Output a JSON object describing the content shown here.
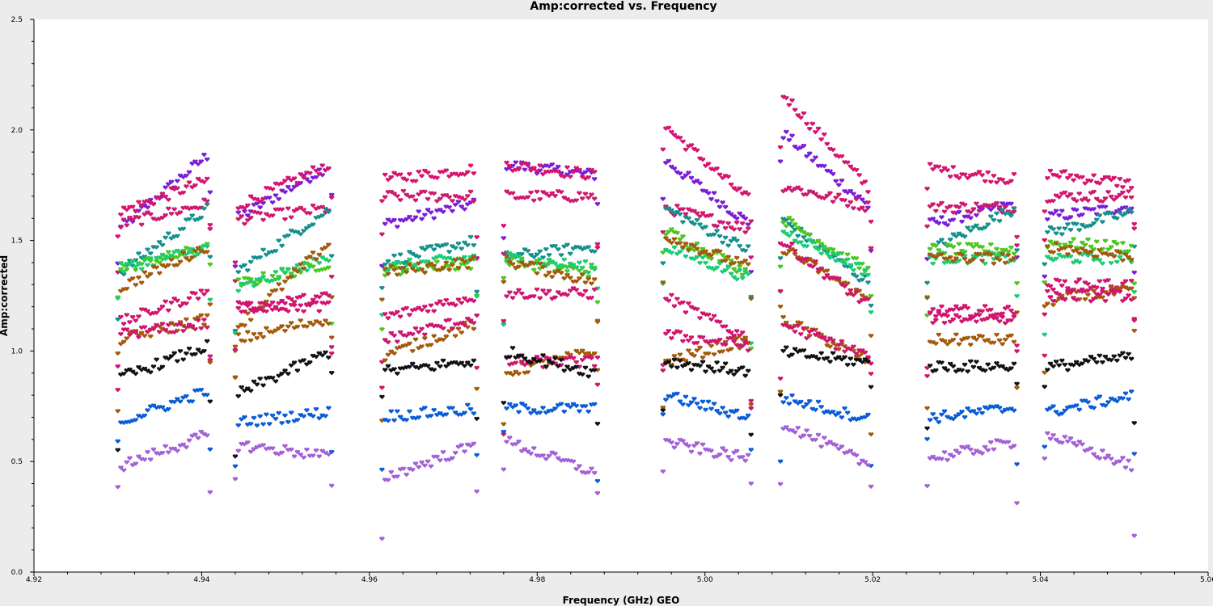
{
  "chart_data": {
    "type": "scatter",
    "title": "Amp:corrected vs. Frequency",
    "xlabel": "Frequency (GHz) GEO",
    "ylabel": "Amp:corrected",
    "xlim": [
      4.92,
      5.06
    ],
    "ylim": [
      0.0,
      2.5
    ],
    "x_ticks": [
      "4.92",
      "4.94",
      "4.96",
      "4.98",
      "5.00",
      "5.02",
      "5.04",
      "5.06"
    ],
    "y_ticks": [
      "0.0",
      "0.5",
      "1.0",
      "1.5",
      "2.0",
      "2.5"
    ],
    "grid": false,
    "marker": "heart",
    "spectral_windows": [
      {
        "x_start": 4.93,
        "x_end": 4.941
      },
      {
        "x_start": 4.944,
        "x_end": 4.9555
      },
      {
        "x_start": 4.9615,
        "x_end": 4.9728
      },
      {
        "x_start": 4.976,
        "x_end": 4.9872
      },
      {
        "x_start": 4.995,
        "x_end": 5.0055
      },
      {
        "x_start": 5.009,
        "x_end": 5.0198
      },
      {
        "x_start": 5.0265,
        "x_end": 5.0372
      },
      {
        "x_start": 5.0405,
        "x_end": 5.0512
      }
    ],
    "series": [
      {
        "color": "#7a1ed6",
        "levels": [
          1.72,
          1.72,
          1.62,
          1.82,
          1.72,
          1.82,
          1.62,
          1.63
        ],
        "slopes": [
          0.35,
          0.25,
          0.1,
          -0.05,
          -0.3,
          -0.35,
          0.1,
          0.05
        ]
      },
      {
        "color": "#d6146e",
        "levels": [
          1.7,
          1.75,
          1.8,
          1.82,
          1.85,
          1.95,
          1.8,
          1.78
        ],
        "slopes": [
          0.15,
          0.2,
          0.05,
          -0.05,
          -0.35,
          -0.45,
          -0.05,
          -0.05
        ]
      },
      {
        "color": "#cc1a6e",
        "levels": [
          1.62,
          1.62,
          1.7,
          1.7,
          1.6,
          1.7,
          1.65,
          1.7
        ],
        "slopes": [
          0.1,
          0.05,
          0.0,
          0.0,
          -0.1,
          -0.1,
          0.0,
          0.0
        ]
      },
      {
        "color": "#15908c",
        "levels": [
          1.5,
          1.5,
          1.45,
          1.45,
          1.55,
          1.45,
          1.55,
          1.58
        ],
        "slopes": [
          0.3,
          0.3,
          0.1,
          0.05,
          -0.2,
          -0.3,
          0.2,
          0.1
        ]
      },
      {
        "color": "#4dc61f",
        "levels": [
          1.42,
          1.35,
          1.38,
          1.38,
          1.45,
          1.48,
          1.46,
          1.48
        ],
        "slopes": [
          0.1,
          0.1,
          0.03,
          -0.05,
          -0.2,
          -0.25,
          0.0,
          -0.02
        ]
      },
      {
        "color": "#1ccc74",
        "levels": [
          1.42,
          1.35,
          1.4,
          1.4,
          1.4,
          1.45,
          1.42,
          1.42
        ],
        "slopes": [
          0.1,
          0.15,
          0.05,
          -0.05,
          -0.15,
          -0.2,
          0.0,
          0.0
        ]
      },
      {
        "color": "#a25a0a",
        "levels": [
          1.38,
          1.3,
          1.38,
          1.36,
          1.45,
          1.35,
          1.42,
          1.45
        ],
        "slopes": [
          0.2,
          0.4,
          0.05,
          -0.1,
          -0.15,
          -0.25,
          0.0,
          -0.05
        ]
      },
      {
        "color": "#d0156f",
        "levels": [
          1.2,
          1.22,
          1.2,
          1.26,
          1.15,
          1.35,
          1.18,
          1.3
        ],
        "slopes": [
          0.15,
          0.05,
          0.1,
          0.0,
          -0.2,
          -0.3,
          0.0,
          0.0
        ]
      },
      {
        "color": "#a25a0a",
        "levels": [
          1.1,
          1.1,
          1.05,
          0.95,
          1.0,
          1.05,
          1.05,
          1.25
        ],
        "slopes": [
          0.1,
          0.1,
          0.15,
          0.1,
          0.1,
          -0.2,
          0.0,
          0.05
        ]
      },
      {
        "color": "#d0156f",
        "levels": [
          1.1,
          1.2,
          1.1,
          0.95,
          1.05,
          1.05,
          1.15,
          1.25
        ],
        "slopes": [
          0.05,
          0.0,
          0.1,
          0.0,
          -0.05,
          -0.15,
          0.0,
          0.0
        ]
      },
      {
        "color": "#111111",
        "levels": [
          0.95,
          0.9,
          0.93,
          0.95,
          0.93,
          0.97,
          0.93,
          0.95
        ],
        "slopes": [
          0.15,
          0.2,
          0.05,
          -0.1,
          -0.05,
          -0.05,
          0.0,
          0.05
        ]
      },
      {
        "color": "#0a5cd6",
        "levels": [
          0.75,
          0.7,
          0.72,
          0.74,
          0.75,
          0.74,
          0.72,
          0.76
        ],
        "slopes": [
          0.15,
          0.05,
          0.03,
          0.0,
          -0.1,
          -0.1,
          0.05,
          0.08
        ]
      },
      {
        "color": "#a361d6",
        "levels": [
          0.55,
          0.55,
          0.5,
          0.52,
          0.55,
          0.58,
          0.55,
          0.55
        ],
        "slopes": [
          0.15,
          -0.05,
          0.15,
          -0.15,
          -0.08,
          -0.2,
          0.08,
          -0.15
        ]
      }
    ]
  }
}
